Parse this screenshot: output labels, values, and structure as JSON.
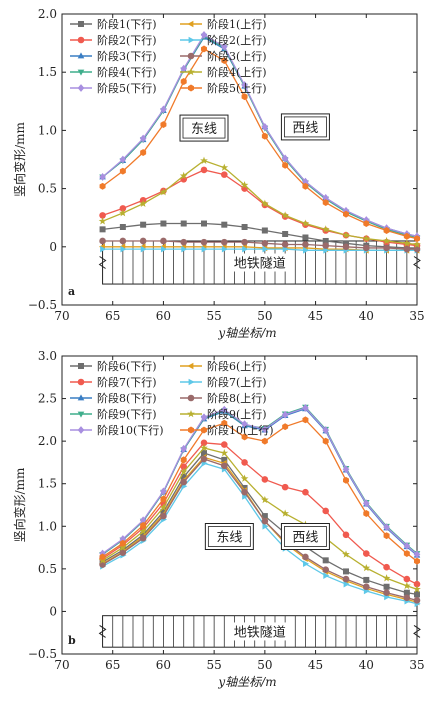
{
  "chart_data": [
    {
      "type": "line",
      "panel_tag": "a",
      "xlabel": "y轴坐标/m",
      "ylabel": "竖向变形/mm",
      "xlim": [
        70,
        35
      ],
      "ylim": [
        -0.5,
        2.0
      ],
      "xticks": [
        70,
        65,
        60,
        55,
        50,
        45,
        40,
        35
      ],
      "yticks": [
        -0.5,
        0,
        0.5,
        1.0,
        1.5,
        2.0
      ],
      "ytick_labels": [
        "−0.5",
        "0",
        "0.5",
        "1.0",
        "1.5",
        "2.0"
      ],
      "box_labels": [
        "东线",
        "西线"
      ],
      "tunnel_label": "地铁隧道",
      "x": [
        66,
        64,
        62,
        60,
        58,
        56,
        54,
        52,
        50,
        48,
        46,
        44,
        42,
        40,
        38,
        36,
        35
      ],
      "series": [
        {
          "name": "阶段1(下行)",
          "color": "#6e6e6e",
          "marker": "square",
          "values": [
            0.15,
            0.17,
            0.19,
            0.2,
            0.2,
            0.2,
            0.19,
            0.17,
            0.14,
            0.11,
            0.08,
            0.05,
            0.03,
            0.01,
            0.0,
            -0.01,
            -0.01
          ]
        },
        {
          "name": "阶段2(下行)",
          "color": "#f05a4f",
          "marker": "circle",
          "values": [
            0.27,
            0.33,
            0.4,
            0.48,
            0.58,
            0.66,
            0.62,
            0.5,
            0.36,
            0.26,
            0.19,
            0.14,
            0.1,
            0.07,
            0.04,
            0.02,
            0.01
          ]
        },
        {
          "name": "阶段3(下行)",
          "color": "#3a7ec4",
          "marker": "triangle-up",
          "values": [
            0.6,
            0.74,
            0.92,
            1.17,
            1.52,
            1.8,
            1.7,
            1.38,
            1.03,
            0.76,
            0.56,
            0.42,
            0.31,
            0.23,
            0.16,
            0.11,
            0.09
          ]
        },
        {
          "name": "阶段4(下行)",
          "color": "#3fae8c",
          "marker": "triangle-down",
          "values": [
            0.6,
            0.74,
            0.92,
            1.17,
            1.52,
            1.81,
            1.71,
            1.38,
            1.02,
            0.75,
            0.55,
            0.41,
            0.3,
            0.22,
            0.15,
            0.1,
            0.08
          ]
        },
        {
          "name": "阶段5(下行)",
          "color": "#a88fe0",
          "marker": "diamond",
          "values": [
            0.6,
            0.75,
            0.93,
            1.18,
            1.53,
            1.82,
            1.72,
            1.39,
            1.03,
            0.76,
            0.56,
            0.42,
            0.31,
            0.23,
            0.16,
            0.11,
            0.09
          ]
        },
        {
          "name": "阶段1(上行)",
          "color": "#e0a020",
          "marker": "triangle-left",
          "values": [
            0.0,
            0.0,
            0.0,
            0.0,
            0.0,
            0.0,
            0.0,
            0.0,
            -0.01,
            -0.01,
            -0.01,
            -0.02,
            -0.02,
            -0.03,
            -0.03,
            -0.03,
            -0.03
          ]
        },
        {
          "name": "阶段2(上行)",
          "color": "#5ec8e8",
          "marker": "triangle-right",
          "values": [
            -0.02,
            -0.02,
            -0.02,
            -0.02,
            -0.02,
            -0.02,
            -0.02,
            -0.02,
            -0.02,
            -0.02,
            -0.03,
            -0.03,
            -0.03,
            -0.03,
            -0.03,
            -0.03,
            -0.03
          ]
        },
        {
          "name": "阶段3(上行)",
          "color": "#9a6a6a",
          "marker": "circle",
          "values": [
            0.05,
            0.05,
            0.05,
            0.05,
            0.04,
            0.04,
            0.04,
            0.04,
            0.03,
            0.02,
            0.02,
            0.01,
            0.0,
            -0.01,
            -0.01,
            -0.02,
            -0.02
          ]
        },
        {
          "name": "阶段4(上行)",
          "color": "#b8b030",
          "marker": "star",
          "values": [
            0.22,
            0.29,
            0.37,
            0.47,
            0.61,
            0.74,
            0.68,
            0.53,
            0.37,
            0.27,
            0.2,
            0.15,
            0.1,
            0.07,
            0.05,
            0.03,
            0.02
          ]
        },
        {
          "name": "阶段5(上行)",
          "color": "#f07a2a",
          "marker": "hexagon",
          "values": [
            0.52,
            0.65,
            0.81,
            1.05,
            1.42,
            1.7,
            1.6,
            1.29,
            0.95,
            0.7,
            0.52,
            0.38,
            0.28,
            0.2,
            0.14,
            0.09,
            0.07
          ]
        }
      ]
    },
    {
      "type": "line",
      "panel_tag": "b",
      "xlabel": "y轴坐标/m",
      "ylabel": "竖向变形/mm",
      "xlim": [
        70,
        35
      ],
      "ylim": [
        -0.5,
        3.0
      ],
      "xticks": [
        70,
        65,
        60,
        55,
        50,
        45,
        40,
        35
      ],
      "yticks": [
        -0.5,
        0,
        0.5,
        1.0,
        1.5,
        2.0,
        2.5,
        3.0
      ],
      "ytick_labels": [
        "−0.5",
        "0",
        "0.5",
        "1.0",
        "1.5",
        "2.0",
        "2.5",
        "3.0"
      ],
      "box_labels": [
        "东线",
        "西线"
      ],
      "tunnel_label": "地铁隧道",
      "x": [
        66,
        64,
        62,
        60,
        58,
        56,
        54,
        52,
        50,
        48,
        46,
        44,
        42,
        40,
        38,
        36,
        35
      ],
      "series": [
        {
          "name": "阶段6(下行)",
          "color": "#6e6e6e",
          "marker": "square",
          "values": [
            0.58,
            0.72,
            0.9,
            1.17,
            1.58,
            1.86,
            1.78,
            1.45,
            1.12,
            0.92,
            0.76,
            0.6,
            0.47,
            0.37,
            0.29,
            0.22,
            0.2
          ]
        },
        {
          "name": "阶段7(下行)",
          "color": "#f05a4f",
          "marker": "circle",
          "values": [
            0.62,
            0.78,
            0.98,
            1.27,
            1.7,
            1.98,
            1.96,
            1.75,
            1.55,
            1.46,
            1.4,
            1.18,
            0.9,
            0.68,
            0.52,
            0.38,
            0.32
          ]
        },
        {
          "name": "阶段8(下行)",
          "color": "#3a7ec4",
          "marker": "triangle-up",
          "values": [
            0.67,
            0.84,
            1.06,
            1.4,
            1.9,
            2.26,
            2.35,
            2.18,
            2.13,
            2.3,
            2.38,
            2.12,
            1.66,
            1.26,
            0.98,
            0.76,
            0.66
          ]
        },
        {
          "name": "阶段9(下行)",
          "color": "#3fae8c",
          "marker": "triangle-down",
          "values": [
            0.67,
            0.84,
            1.06,
            1.4,
            1.9,
            2.27,
            2.36,
            2.19,
            2.15,
            2.32,
            2.4,
            2.14,
            1.68,
            1.28,
            1.0,
            0.78,
            0.68
          ]
        },
        {
          "name": "阶段10(下行)",
          "color": "#a88fe0",
          "marker": "diamond",
          "values": [
            0.68,
            0.85,
            1.07,
            1.41,
            1.91,
            2.28,
            2.37,
            2.2,
            2.14,
            2.31,
            2.39,
            2.13,
            1.67,
            1.27,
            0.99,
            0.77,
            0.67
          ]
        },
        {
          "name": "阶段6(上行)",
          "color": "#e0a020",
          "marker": "triangle-left",
          "values": [
            0.56,
            0.7,
            0.88,
            1.14,
            1.54,
            1.81,
            1.74,
            1.42,
            1.06,
            0.8,
            0.62,
            0.47,
            0.36,
            0.27,
            0.2,
            0.14,
            0.11
          ]
        },
        {
          "name": "阶段7(上行)",
          "color": "#5ec8e8",
          "marker": "triangle-right",
          "values": [
            0.53,
            0.66,
            0.83,
            1.08,
            1.47,
            1.74,
            1.67,
            1.35,
            1.0,
            0.74,
            0.56,
            0.42,
            0.32,
            0.24,
            0.17,
            0.12,
            0.09
          ]
        },
        {
          "name": "阶段8(上行)",
          "color": "#9a6a6a",
          "marker": "circle",
          "values": [
            0.55,
            0.69,
            0.86,
            1.12,
            1.52,
            1.79,
            1.71,
            1.4,
            1.06,
            0.82,
            0.64,
            0.49,
            0.38,
            0.29,
            0.22,
            0.16,
            0.13
          ]
        },
        {
          "name": "阶段9(上行)",
          "color": "#b8b030",
          "marker": "star",
          "values": [
            0.6,
            0.75,
            0.94,
            1.22,
            1.64,
            1.92,
            1.86,
            1.56,
            1.31,
            1.15,
            1.02,
            0.86,
            0.67,
            0.51,
            0.39,
            0.3,
            0.26
          ]
        },
        {
          "name": "阶段10(上行)",
          "color": "#f07a2a",
          "marker": "hexagon",
          "values": [
            0.64,
            0.8,
            1.01,
            1.32,
            1.78,
            2.13,
            2.21,
            2.05,
            2.0,
            2.17,
            2.25,
            2.0,
            1.54,
            1.15,
            0.89,
            0.68,
            0.59
          ]
        }
      ]
    }
  ]
}
